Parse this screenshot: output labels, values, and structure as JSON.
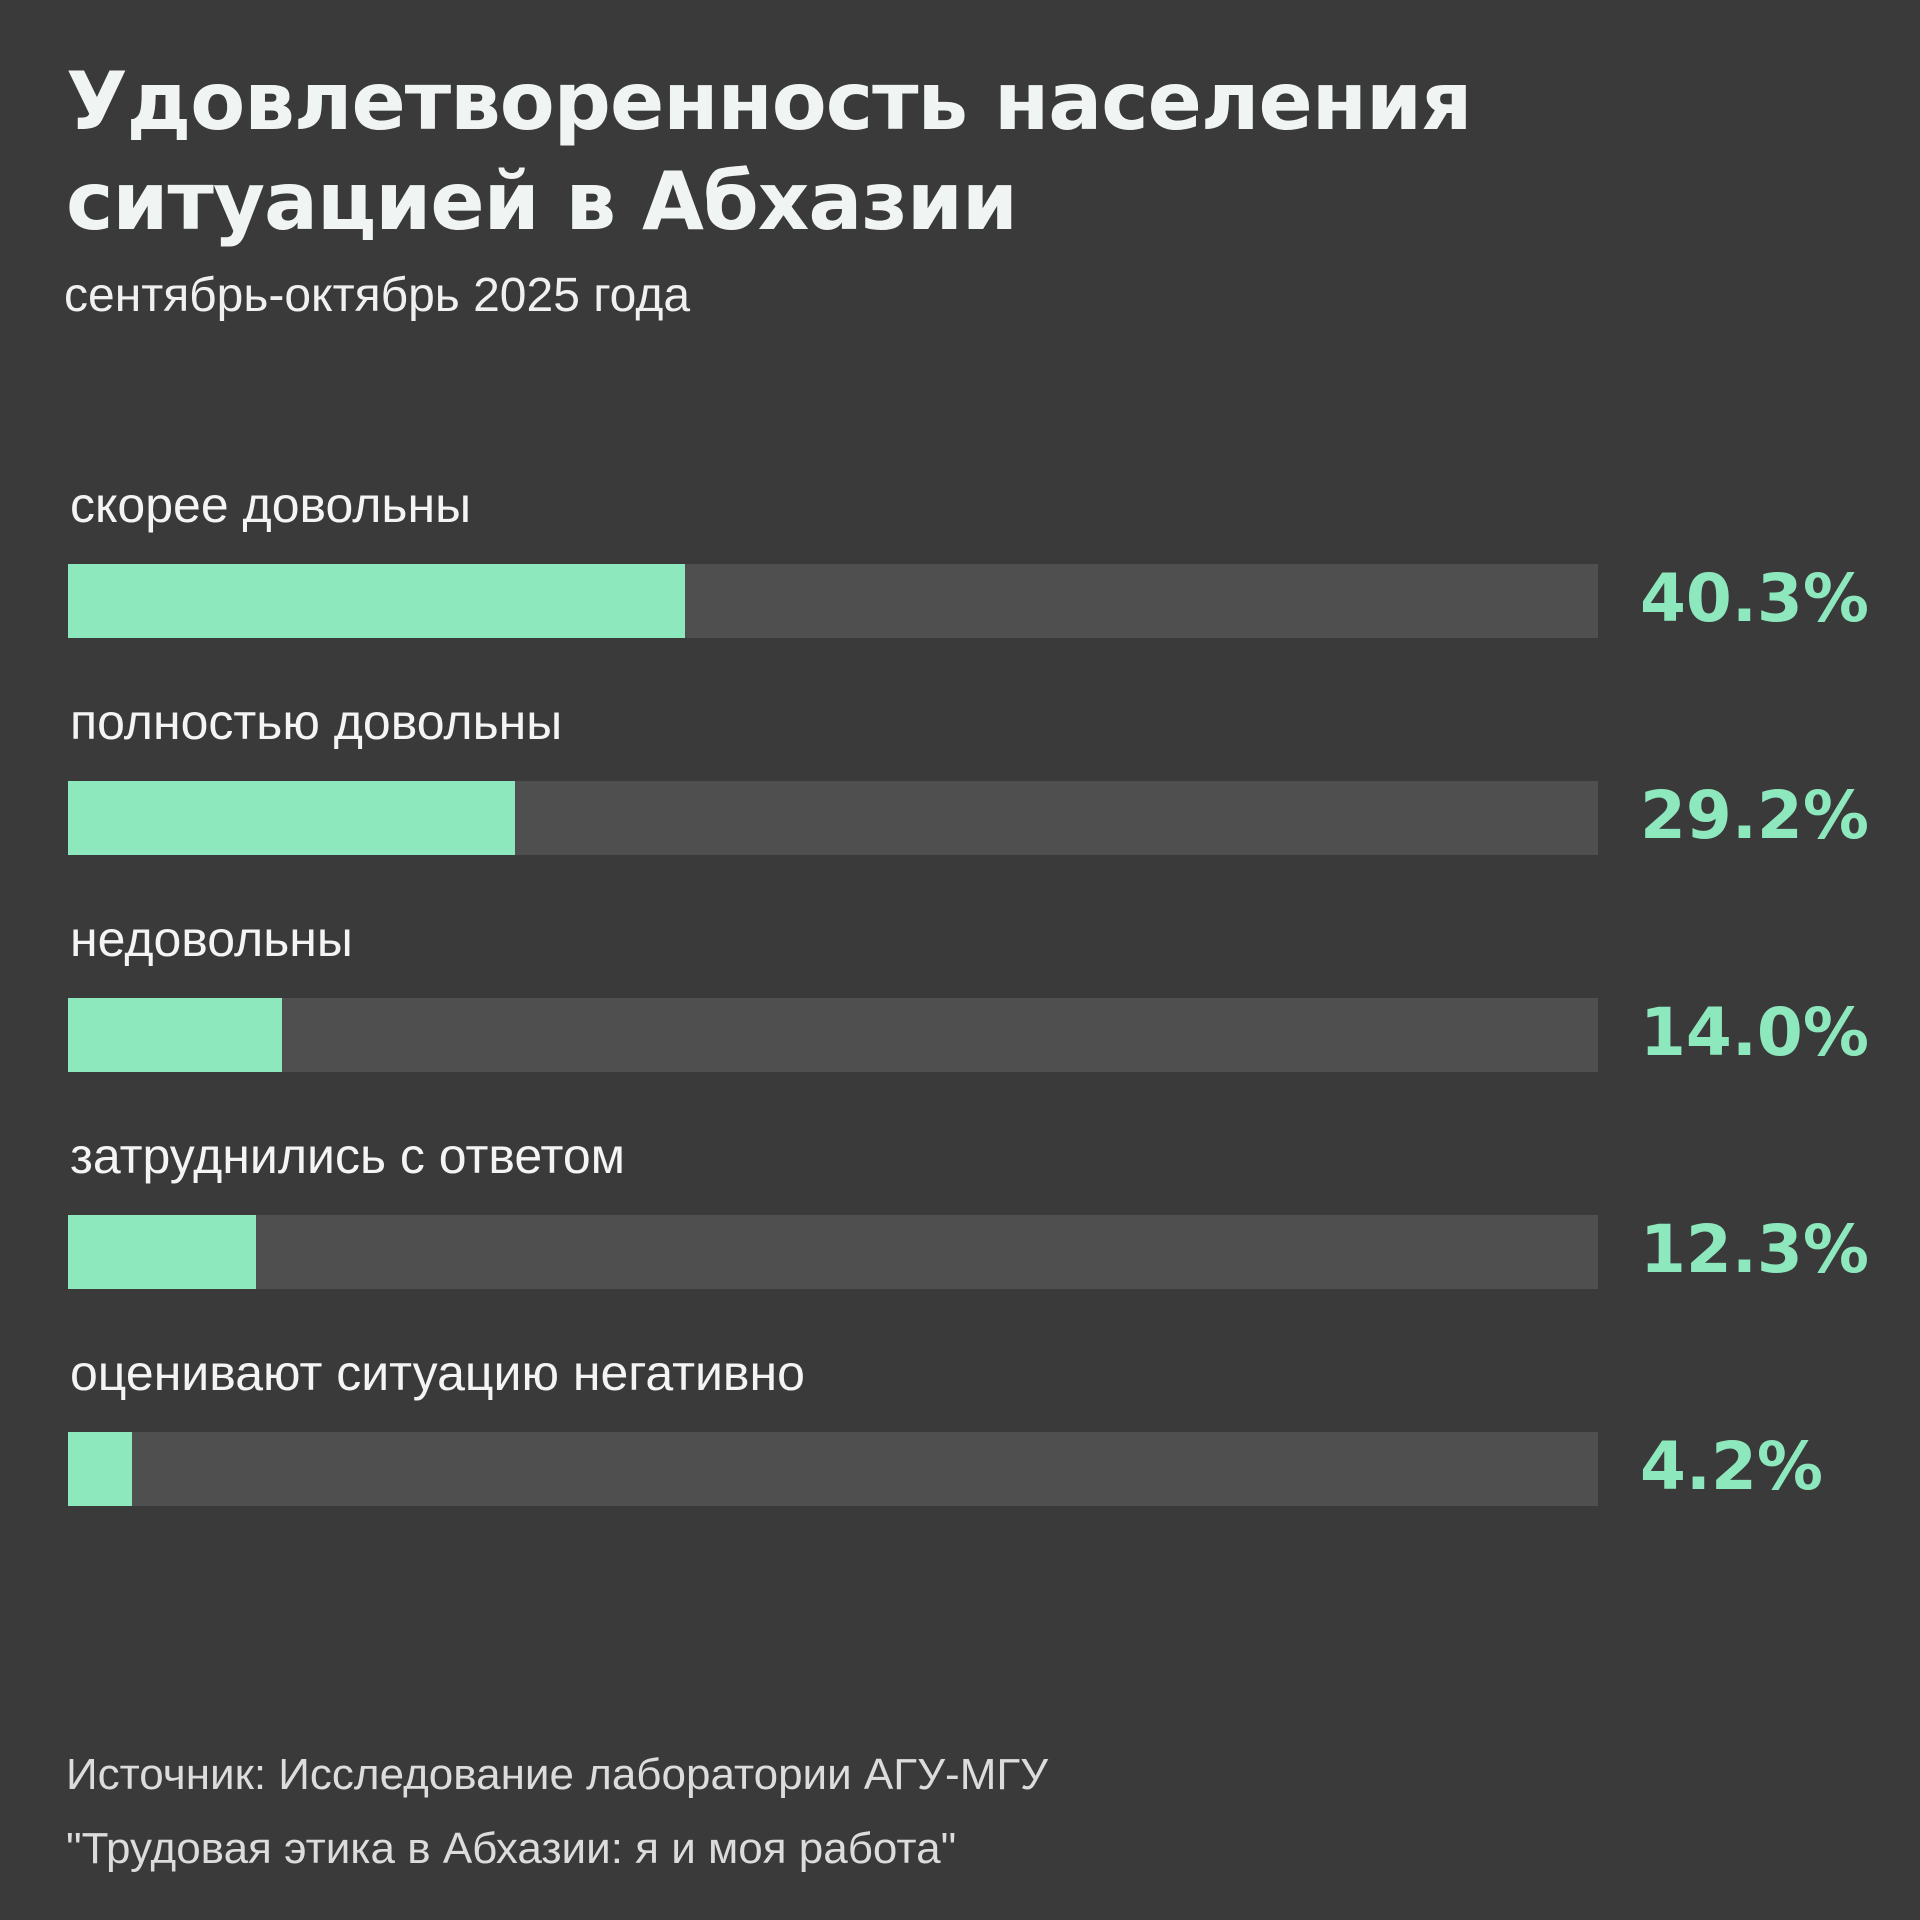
{
  "chart_data": {
    "type": "bar",
    "orientation": "horizontal",
    "title": "Удовлетворенность населения ситуацией в Абхазии",
    "title_lines": [
      "Удовлетворенность населения",
      "ситуацией в Абхазии"
    ],
    "subtitle": "сентябрь-октябрь 2025 года",
    "categories": [
      "скорее довольны",
      "полностью довольны",
      "недовольны",
      "затруднились с ответом",
      "оценивают ситуацию негативно"
    ],
    "values": [
      40.3,
      29.2,
      14.0,
      12.3,
      4.2
    ],
    "value_labels": [
      "40.3%",
      "29.2%",
      "14.0%",
      "12.3%",
      "4.2%"
    ],
    "xlim": [
      0,
      100
    ],
    "unit": "%",
    "grid": false,
    "colors": {
      "background": "#3a3a3a",
      "track": "#4f4f4f",
      "bar": "#8ee8bd",
      "value_text": "#8ee8bd"
    }
  },
  "source": {
    "line1": "Источник: Исследование лаборатории АГУ-МГУ",
    "line2": "\"Трудовая этика в Абхазии: я и моя работа\""
  }
}
